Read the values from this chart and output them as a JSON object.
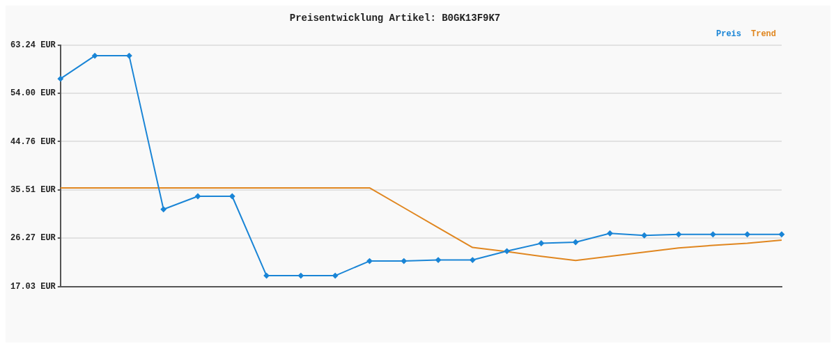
{
  "chart_data": {
    "type": "line",
    "title": "Preisentwicklung Artikel: B0GK13F9K7",
    "categories": [
      null,
      null,
      null,
      null,
      null,
      null,
      null,
      null,
      null,
      null,
      null,
      null,
      null,
      null,
      null,
      null,
      null,
      null,
      null,
      null,
      null,
      null
    ],
    "series": [
      {
        "name": "Preis",
        "color": "#1a85d6",
        "marker": "diamond",
        "values": [
          56.8,
          61.2,
          61.2,
          31.8,
          34.3,
          34.3,
          19.1,
          19.1,
          19.1,
          21.9,
          21.9,
          22.1,
          22.1,
          23.8,
          25.3,
          25.5,
          27.2,
          26.8,
          27.0,
          27.0,
          27.0,
          27.0
        ]
      },
      {
        "name": "Trend",
        "color": "#e0861f",
        "marker": "none",
        "values": [
          35.9,
          35.9,
          35.9,
          35.9,
          35.9,
          35.9,
          35.9,
          35.9,
          35.9,
          35.9,
          32.1,
          28.3,
          24.5,
          23.7,
          22.8,
          22.0,
          22.8,
          23.6,
          24.4,
          24.9,
          25.3,
          25.9
        ]
      }
    ],
    "ylim": [
      17.03,
      63.24
    ],
    "yticks": [
      {
        "value": 17.03,
        "label": "17.03 EUR"
      },
      {
        "value": 26.27,
        "label": "26.27 EUR"
      },
      {
        "value": 35.51,
        "label": "35.51 EUR"
      },
      {
        "value": 44.76,
        "label": "44.76 EUR"
      },
      {
        "value": 54.0,
        "label": "54.00 EUR"
      },
      {
        "value": 63.24,
        "label": "63.24 EUR"
      }
    ],
    "grid": "y",
    "legend": "top right",
    "line_style": "solid"
  }
}
